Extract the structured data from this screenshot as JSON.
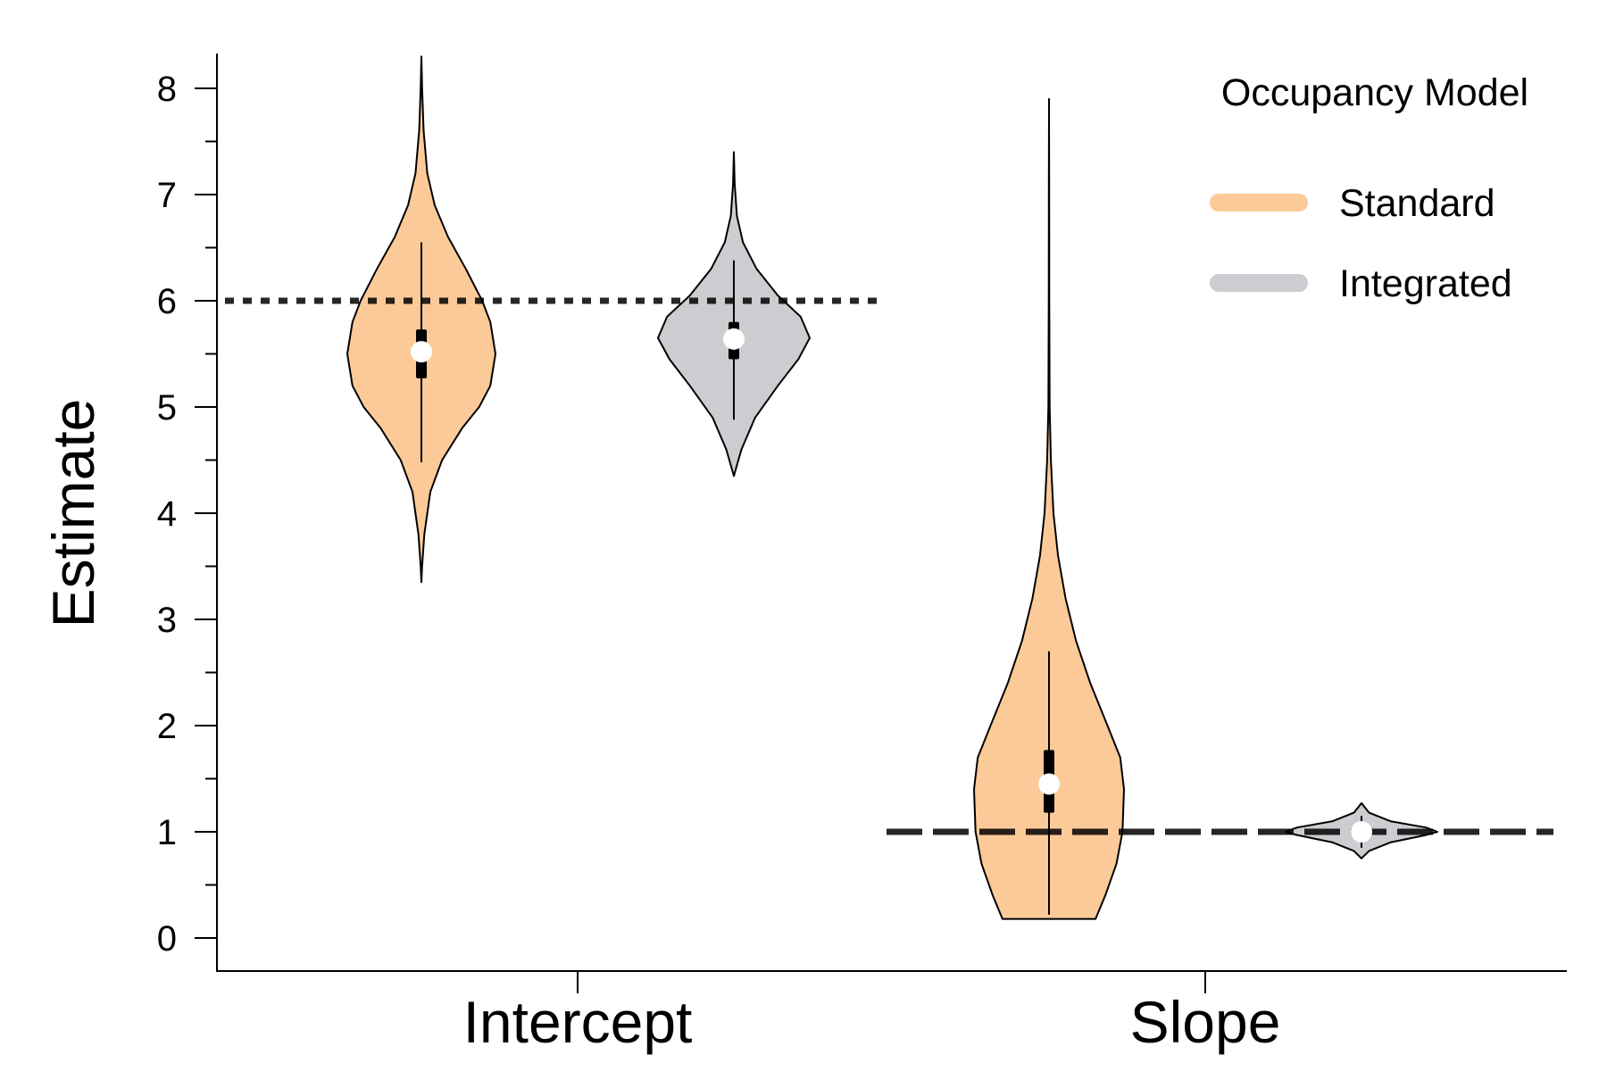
{
  "chart_data": {
    "type": "violin",
    "title": "",
    "xlabel": "",
    "ylabel": "Estimate",
    "categories": [
      "Intercept",
      "Slope"
    ],
    "ylim": [
      0,
      8.3
    ],
    "yticks": [
      0,
      1,
      2,
      3,
      4,
      5,
      6,
      7,
      8
    ],
    "yminor_ticks": [
      0.5,
      1.5,
      2.5,
      3.5,
      4.5,
      5.5,
      6.5,
      7.5
    ],
    "grid": false,
    "legend": {
      "title": "Occupancy Model",
      "placement": "top-right",
      "entries": [
        {
          "name": "Standard",
          "color": "#FBCA98"
        },
        {
          "name": "Integrated",
          "color": "#CCCCD1"
        }
      ]
    },
    "series": [
      {
        "name": "Standard",
        "color": "#FBCA98",
        "violins": [
          {
            "category": "Intercept",
            "median": 5.52,
            "iqr": [
              5.27,
              5.73
            ],
            "whisker": [
              4.48,
              6.55
            ],
            "density": [
              [
                3.35,
                0
              ],
              [
                3.5,
                0.01
              ],
              [
                3.8,
                0.04
              ],
              [
                4.2,
                0.12
              ],
              [
                4.5,
                0.28
              ],
              [
                4.8,
                0.55
              ],
              [
                5.0,
                0.78
              ],
              [
                5.2,
                0.93
              ],
              [
                5.5,
                1.0
              ],
              [
                5.8,
                0.93
              ],
              [
                6.0,
                0.82
              ],
              [
                6.3,
                0.6
              ],
              [
                6.6,
                0.36
              ],
              [
                6.9,
                0.18
              ],
              [
                7.2,
                0.08
              ],
              [
                7.6,
                0.03
              ],
              [
                8.0,
                0.01
              ],
              [
                8.3,
                0
              ]
            ]
          },
          {
            "category": "Slope",
            "median": 1.45,
            "iqr": [
              1.18,
              1.77
            ],
            "whisker": [
              0.22,
              2.7
            ],
            "density": [
              [
                0.18,
                0.62
              ],
              [
                0.4,
                0.75
              ],
              [
                0.7,
                0.9
              ],
              [
                1.0,
                0.98
              ],
              [
                1.4,
                1.0
              ],
              [
                1.7,
                0.95
              ],
              [
                2.0,
                0.78
              ],
              [
                2.4,
                0.55
              ],
              [
                2.8,
                0.36
              ],
              [
                3.2,
                0.22
              ],
              [
                3.6,
                0.12
              ],
              [
                4.0,
                0.06
              ],
              [
                4.5,
                0.025
              ],
              [
                5.0,
                0.008
              ],
              [
                6.0,
                0.004
              ],
              [
                7.0,
                0.002
              ],
              [
                7.9,
                0
              ]
            ]
          }
        ]
      },
      {
        "name": "Integrated",
        "color": "#CCCCD1",
        "violins": [
          {
            "category": "Intercept",
            "median": 5.64,
            "iqr": [
              5.45,
              5.8
            ],
            "whisker": [
              4.88,
              6.38
            ],
            "density": [
              [
                4.35,
                0
              ],
              [
                4.45,
                0.04
              ],
              [
                4.6,
                0.1
              ],
              [
                4.9,
                0.28
              ],
              [
                5.2,
                0.58
              ],
              [
                5.45,
                0.85
              ],
              [
                5.65,
                1.0
              ],
              [
                5.85,
                0.88
              ],
              [
                6.05,
                0.58
              ],
              [
                6.3,
                0.3
              ],
              [
                6.55,
                0.12
              ],
              [
                6.8,
                0.04
              ],
              [
                7.1,
                0.01
              ],
              [
                7.4,
                0
              ]
            ]
          },
          {
            "category": "Slope",
            "median": 1.0,
            "iqr": [
              0.97,
              1.03
            ],
            "whisker": [
              0.85,
              1.15
            ],
            "density": [
              [
                0.75,
                0
              ],
              [
                0.82,
                0.1
              ],
              [
                0.9,
                0.38
              ],
              [
                0.97,
                0.85
              ],
              [
                1.0,
                1.0
              ],
              [
                1.04,
                0.85
              ],
              [
                1.1,
                0.38
              ],
              [
                1.18,
                0.1
              ],
              [
                1.27,
                0
              ]
            ]
          }
        ]
      }
    ],
    "reference_lines": [
      {
        "category": "Intercept",
        "y": 6,
        "style": "dotted"
      },
      {
        "category": "Slope",
        "y": 1,
        "style": "dashed"
      }
    ]
  }
}
